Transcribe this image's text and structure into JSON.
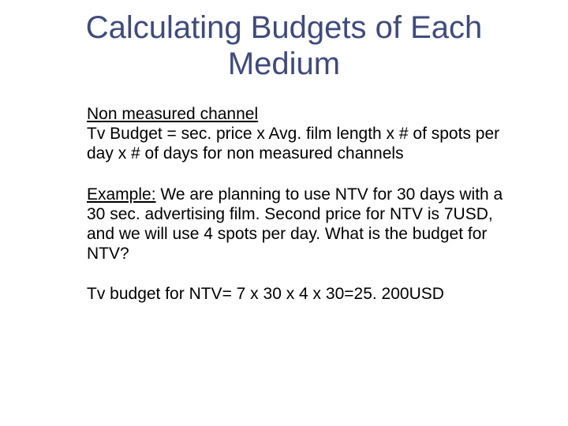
{
  "slide": {
    "title": "Calculating Budgets of Each Medium",
    "title_color": "#3f4a7e",
    "title_fontsize": 40,
    "body_fontsize": 21,
    "body_color": "#000000",
    "background_color": "#ffffff",
    "para1_line1": "Non measured channel",
    "para1_rest": "Tv Budget = sec. price x Avg. film length x # of spots per day x # of days for non measured channels",
    "para2_label": "Example:",
    "para2_rest": " We are planning to use NTV for 30 days with a 30 sec. advertising film. Second price for NTV is 7USD, and we will use 4 spots per day. What is the budget for NTV?",
    "para3": "Tv budget for NTV= 7 x 30 x 4 x 30=25. 200USD"
  }
}
